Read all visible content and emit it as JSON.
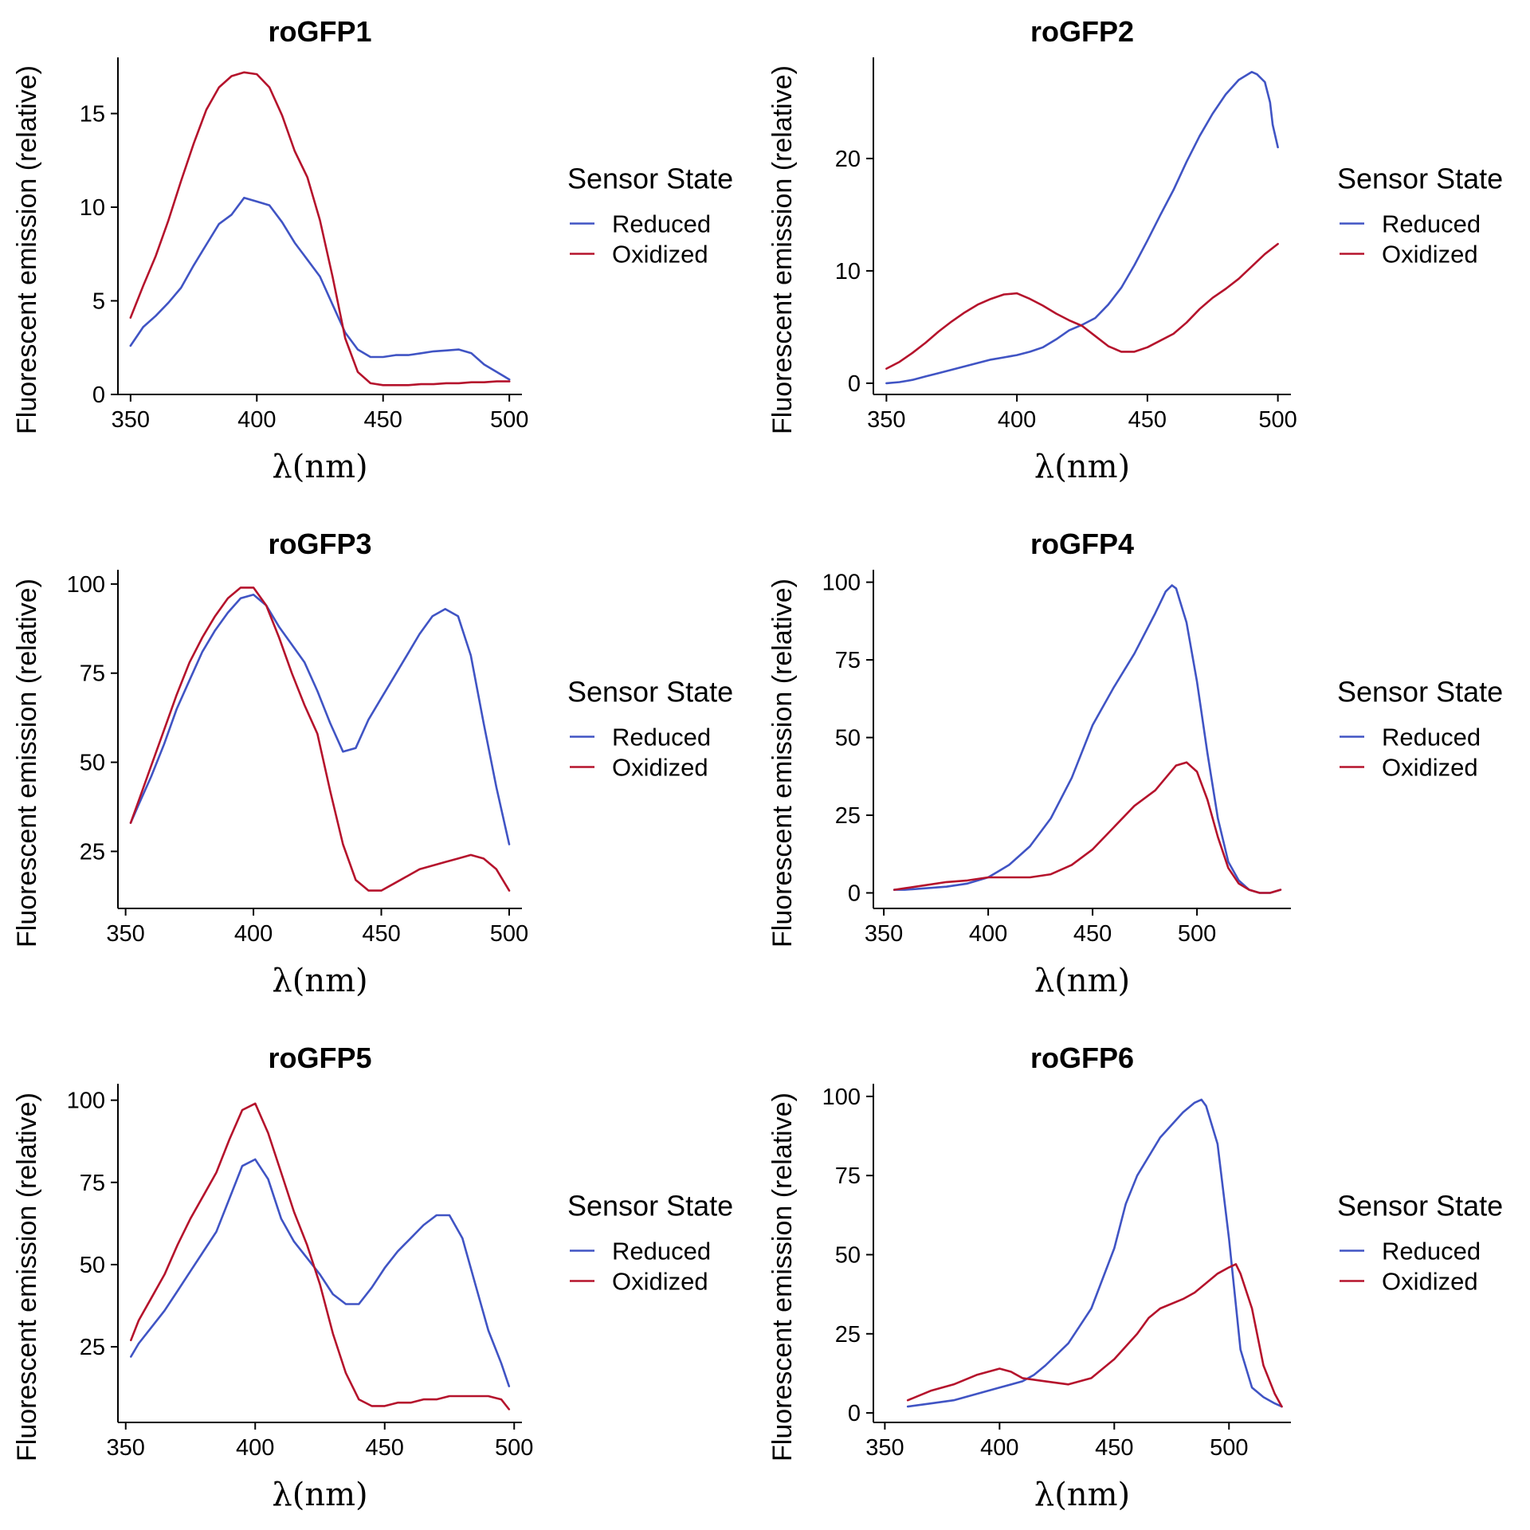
{
  "colors": {
    "reduced": "#4054C4",
    "oxidized": "#B5132C",
    "axis": "#000000",
    "background": "#ffffff"
  },
  "chart_data": [
    {
      "type": "line",
      "title": "roGFP1",
      "xlabel": "λ(nm)",
      "ylabel": "Fluorescent emission (relative)",
      "xlim": [
        345,
        505
      ],
      "ylim": [
        0,
        18
      ],
      "xticks": [
        350,
        400,
        450,
        500
      ],
      "yticks": [
        0,
        5,
        10,
        15
      ],
      "grid": false,
      "legend": {
        "title": "Sensor State",
        "position": "right",
        "entries": [
          "Reduced",
          "Oxidized"
        ]
      },
      "series": [
        {
          "name": "Reduced",
          "x": [
            350,
            355,
            360,
            365,
            370,
            375,
            380,
            385,
            390,
            395,
            400,
            405,
            410,
            415,
            420,
            425,
            430,
            435,
            440,
            445,
            450,
            455,
            460,
            465,
            470,
            475,
            480,
            485,
            490,
            495,
            500
          ],
          "values": [
            2.6,
            3.6,
            4.2,
            4.9,
            5.7,
            6.9,
            8.0,
            9.1,
            9.6,
            10.5,
            10.3,
            10.1,
            9.2,
            8.1,
            7.2,
            6.3,
            4.8,
            3.3,
            2.4,
            2.0,
            2.0,
            2.1,
            2.1,
            2.2,
            2.3,
            2.35,
            2.4,
            2.2,
            1.6,
            1.2,
            0.8
          ]
        },
        {
          "name": "Oxidized",
          "x": [
            350,
            355,
            360,
            365,
            370,
            375,
            380,
            385,
            390,
            395,
            400,
            405,
            410,
            415,
            420,
            425,
            430,
            435,
            440,
            445,
            450,
            455,
            460,
            465,
            470,
            475,
            480,
            485,
            490,
            495,
            500
          ],
          "values": [
            4.1,
            5.8,
            7.4,
            9.3,
            11.4,
            13.4,
            15.2,
            16.4,
            17.0,
            17.2,
            17.1,
            16.4,
            14.9,
            13.0,
            11.6,
            9.3,
            6.3,
            3.0,
            1.2,
            0.6,
            0.5,
            0.5,
            0.5,
            0.55,
            0.55,
            0.6,
            0.6,
            0.65,
            0.65,
            0.7,
            0.7
          ]
        }
      ]
    },
    {
      "type": "line",
      "title": "roGFP2",
      "xlabel": "λ(nm)",
      "ylabel": "Fluorescent emission (relative)",
      "xlim": [
        345,
        505
      ],
      "ylim": [
        -1,
        29
      ],
      "xticks": [
        350,
        400,
        450,
        500
      ],
      "yticks": [
        0,
        10,
        20
      ],
      "grid": false,
      "legend": {
        "title": "Sensor State",
        "position": "right",
        "entries": [
          "Reduced",
          "Oxidized"
        ]
      },
      "series": [
        {
          "name": "Reduced",
          "x": [
            350,
            355,
            360,
            365,
            370,
            375,
            380,
            385,
            390,
            395,
            400,
            405,
            410,
            415,
            420,
            425,
            430,
            435,
            440,
            445,
            450,
            455,
            460,
            465,
            470,
            475,
            480,
            485,
            490,
            492,
            495,
            497,
            498,
            500
          ],
          "values": [
            0.0,
            0.1,
            0.3,
            0.6,
            0.9,
            1.2,
            1.5,
            1.8,
            2.1,
            2.3,
            2.5,
            2.8,
            3.2,
            3.9,
            4.7,
            5.2,
            5.8,
            7.0,
            8.5,
            10.5,
            12.7,
            15.0,
            17.2,
            19.7,
            22.0,
            24.0,
            25.7,
            27.0,
            27.7,
            27.5,
            26.8,
            25.0,
            23.0,
            21.0
          ]
        },
        {
          "name": "Oxidized",
          "x": [
            350,
            355,
            360,
            365,
            370,
            375,
            380,
            385,
            390,
            395,
            400,
            405,
            410,
            415,
            420,
            425,
            430,
            435,
            440,
            445,
            450,
            455,
            460,
            465,
            470,
            475,
            480,
            485,
            490,
            495,
            500
          ],
          "values": [
            1.3,
            1.9,
            2.7,
            3.6,
            4.6,
            5.5,
            6.3,
            7.0,
            7.5,
            7.9,
            8.0,
            7.5,
            6.9,
            6.2,
            5.6,
            5.1,
            4.2,
            3.3,
            2.8,
            2.8,
            3.2,
            3.8,
            4.4,
            5.4,
            6.6,
            7.6,
            8.4,
            9.3,
            10.4,
            11.5,
            12.4
          ]
        }
      ]
    },
    {
      "type": "line",
      "title": "roGFP3",
      "xlabel": "λ(nm)",
      "ylabel": "Fluorescent emission (relative)",
      "xlim": [
        347,
        505
      ],
      "ylim": [
        9,
        104
      ],
      "xticks": [
        350,
        400,
        450,
        500
      ],
      "yticks": [
        25,
        50,
        75,
        100
      ],
      "grid": false,
      "legend": {
        "title": "Sensor State",
        "position": "right",
        "entries": [
          "Reduced",
          "Oxidized"
        ]
      },
      "series": [
        {
          "name": "Reduced",
          "x": [
            352,
            355,
            360,
            365,
            370,
            375,
            380,
            385,
            390,
            395,
            400,
            405,
            410,
            415,
            420,
            425,
            430,
            435,
            440,
            445,
            450,
            455,
            460,
            465,
            470,
            475,
            480,
            485,
            490,
            495,
            500
          ],
          "values": [
            33,
            38,
            46,
            55,
            65,
            73,
            81,
            87,
            92,
            96,
            97,
            94,
            88,
            83,
            78,
            70,
            61,
            53,
            54,
            62,
            68,
            74,
            80,
            86,
            91,
            93,
            91,
            80,
            61,
            43,
            27
          ]
        },
        {
          "name": "Oxidized",
          "x": [
            352,
            355,
            360,
            365,
            370,
            375,
            380,
            385,
            390,
            395,
            400,
            405,
            410,
            415,
            420,
            425,
            430,
            435,
            440,
            445,
            450,
            455,
            460,
            465,
            470,
            475,
            480,
            485,
            490,
            495,
            500
          ],
          "values": [
            33,
            39,
            49,
            59,
            69,
            78,
            85,
            91,
            96,
            99,
            99,
            94,
            85,
            75,
            66,
            58,
            42,
            27,
            17,
            14,
            14,
            16,
            18,
            20,
            21,
            22,
            23,
            24,
            23,
            20,
            14
          ]
        }
      ]
    },
    {
      "type": "line",
      "title": "roGFP4",
      "xlabel": "λ(nm)",
      "ylabel": "Fluorescent emission (relative)",
      "xlim": [
        345,
        545
      ],
      "ylim": [
        -5,
        104
      ],
      "xticks": [
        350,
        400,
        450,
        500
      ],
      "yticks": [
        0,
        25,
        50,
        75,
        100
      ],
      "grid": false,
      "legend": {
        "title": "Sensor State",
        "position": "right",
        "entries": [
          "Reduced",
          "Oxidized"
        ]
      },
      "series": [
        {
          "name": "Reduced",
          "x": [
            355,
            360,
            370,
            380,
            390,
            400,
            405,
            410,
            420,
            430,
            440,
            450,
            455,
            460,
            470,
            480,
            485,
            488,
            490,
            495,
            500,
            505,
            510,
            515,
            520,
            525,
            530,
            535,
            540
          ],
          "values": [
            1,
            1,
            1.5,
            2,
            3,
            5,
            7,
            9,
            15,
            24,
            37,
            54,
            60,
            66,
            77,
            90,
            97,
            99,
            98,
            87,
            68,
            45,
            24,
            10,
            4,
            1,
            0,
            0,
            1
          ]
        },
        {
          "name": "Oxidized",
          "x": [
            355,
            360,
            370,
            380,
            390,
            400,
            410,
            420,
            430,
            440,
            450,
            460,
            470,
            480,
            485,
            490,
            495,
            500,
            505,
            510,
            515,
            520,
            525,
            530,
            535,
            540
          ],
          "values": [
            1,
            1.5,
            2.5,
            3.5,
            4,
            5,
            5,
            5,
            6,
            9,
            14,
            21,
            28,
            33,
            37,
            41,
            42,
            39,
            30,
            18,
            8,
            3,
            1,
            0,
            0,
            1
          ]
        }
      ]
    },
    {
      "type": "line",
      "title": "roGFP5",
      "xlabel": "λ(nm)",
      "ylabel": "Fluorescent emission (relative)",
      "xlim": [
        347,
        503
      ],
      "ylim": [
        2,
        105
      ],
      "xticks": [
        350,
        400,
        450,
        500
      ],
      "yticks": [
        25,
        50,
        75,
        100
      ],
      "grid": false,
      "legend": {
        "title": "Sensor State",
        "position": "right",
        "entries": [
          "Reduced",
          "Oxidized"
        ]
      },
      "series": [
        {
          "name": "Reduced",
          "x": [
            352,
            355,
            360,
            365,
            370,
            375,
            380,
            385,
            390,
            395,
            400,
            405,
            410,
            415,
            420,
            425,
            430,
            435,
            440,
            445,
            450,
            455,
            460,
            465,
            470,
            475,
            480,
            485,
            490,
            495,
            498
          ],
          "values": [
            22,
            26,
            31,
            36,
            42,
            48,
            54,
            60,
            70,
            80,
            82,
            76,
            64,
            57,
            52,
            47,
            41,
            38,
            38,
            43,
            49,
            54,
            58,
            62,
            65,
            65,
            58,
            44,
            30,
            20,
            13
          ]
        },
        {
          "name": "Oxidized",
          "x": [
            352,
            355,
            360,
            365,
            370,
            375,
            380,
            385,
            390,
            395,
            400,
            405,
            410,
            415,
            420,
            425,
            430,
            435,
            440,
            445,
            450,
            455,
            460,
            465,
            470,
            475,
            480,
            485,
            490,
            495,
            498
          ],
          "values": [
            27,
            33,
            40,
            47,
            56,
            64,
            71,
            78,
            88,
            97,
            99,
            90,
            78,
            66,
            56,
            44,
            29,
            17,
            9,
            7,
            7,
            8,
            8,
            9,
            9,
            10,
            10,
            10,
            10,
            9,
            6
          ]
        }
      ]
    },
    {
      "type": "line",
      "title": "roGFP6",
      "xlabel": "λ(nm)",
      "ylabel": "Fluorescent emission (relative)",
      "xlim": [
        345,
        527
      ],
      "ylim": [
        -3,
        104
      ],
      "xticks": [
        350,
        400,
        450,
        500
      ],
      "yticks": [
        0,
        25,
        50,
        75,
        100
      ],
      "grid": false,
      "legend": {
        "title": "Sensor State",
        "position": "right",
        "entries": [
          "Reduced",
          "Oxidized"
        ]
      },
      "series": [
        {
          "name": "Reduced",
          "x": [
            360,
            370,
            380,
            390,
            400,
            410,
            415,
            420,
            430,
            440,
            450,
            455,
            460,
            470,
            480,
            485,
            488,
            490,
            495,
            500,
            505,
            510,
            515,
            520,
            523
          ],
          "values": [
            2,
            3,
            4,
            6,
            8,
            10,
            12,
            15,
            22,
            33,
            52,
            66,
            75,
            87,
            95,
            98,
            99,
            97,
            85,
            55,
            20,
            8,
            5,
            3,
            2
          ]
        },
        {
          "name": "Oxidized",
          "x": [
            360,
            370,
            380,
            390,
            400,
            405,
            410,
            420,
            430,
            440,
            450,
            460,
            465,
            470,
            480,
            485,
            490,
            495,
            500,
            503,
            505,
            510,
            515,
            520,
            523
          ],
          "values": [
            4,
            7,
            9,
            12,
            14,
            13,
            11,
            10,
            9,
            11,
            17,
            25,
            30,
            33,
            36,
            38,
            41,
            44,
            46,
            47,
            44,
            33,
            15,
            6,
            2
          ]
        }
      ]
    }
  ]
}
